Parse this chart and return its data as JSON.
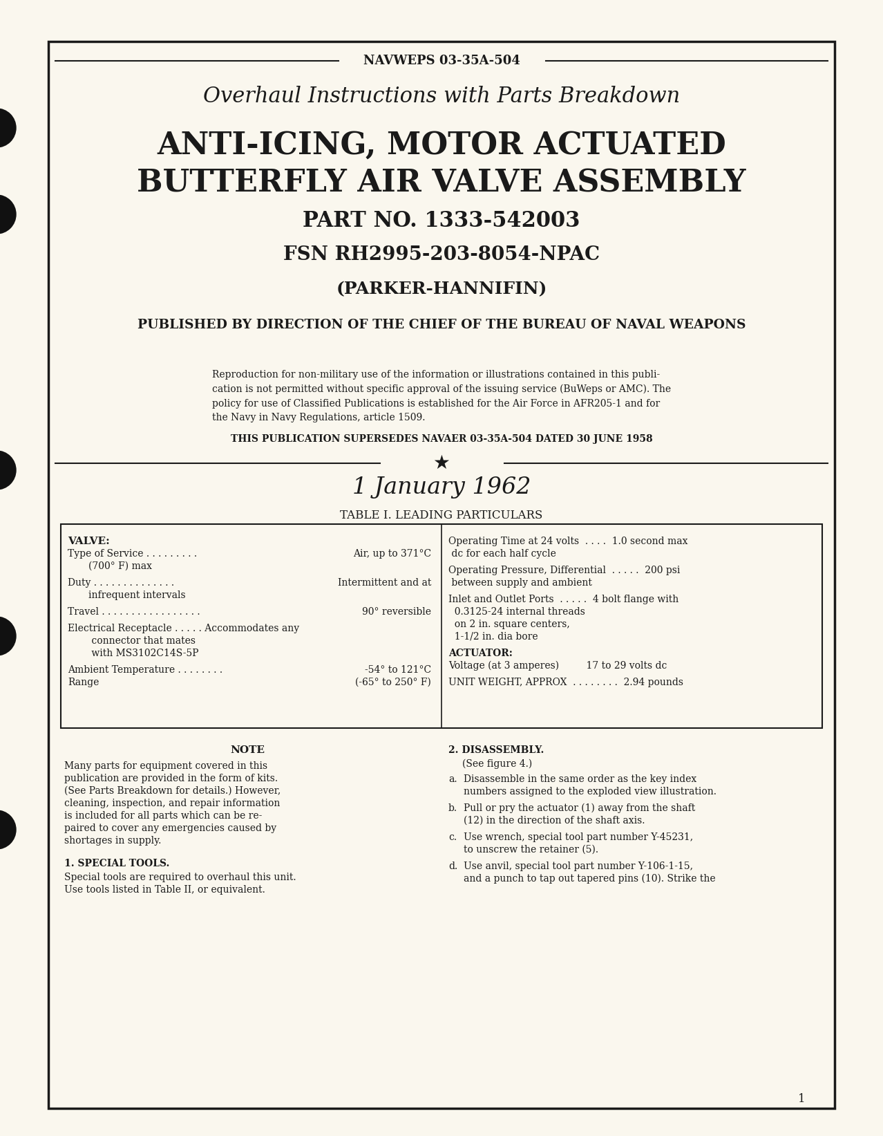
{
  "bg_color": "#f5f0e0",
  "page_bg": "#faf7ee",
  "text_color": "#1a1a1a",
  "border_color": "#1a1a1a",
  "header_doc_num": "NAVWEPS 03-35A-504",
  "title_line1": "Overhaul Instructions with Parts Breakdown",
  "title_line2": "ANTI-ICING, MOTOR ACTUATED",
  "title_line3": "BUTTERFLY AIR VALVE ASSEMBLY",
  "title_line4": "PART NO. 1333-542003",
  "title_line5": "FSN RH2995-203-8054-NPAC",
  "title_line6": "(PARKER-HANNIFIN)",
  "title_line7": "PUBLISHED BY DIRECTION OF THE CHIEF OF THE BUREAU OF NAVAL WEAPONS",
  "reproduction_text": "Reproduction for non-military use of the information or illustrations contained in this publication is not permitted without specific approval of the issuing service (BuWeps or AMC). The policy for use of Classified Publications is established for the Air Force in AFR205-1 and for the Navy in Navy Regulations, article 1509.",
  "supersedes_text": "THIS PUBLICATION SUPERSEDES NAVAER 03-35A-504 DATED 30 JUNE 1958",
  "date_text": "1 January 1962",
  "table_title": "TABLE I. LEADING PARTICULARS",
  "left_col": [
    [
      "VALVE:",
      ""
    ],
    [
      "Type of Service . . . . . . . . .",
      "Air, up to 371°C\n(700° F) max"
    ],
    [
      "",
      ""
    ],
    [
      "Duty . . . . . . . . . . . . . .",
      "Intermittent and at\ninfrequent intervals"
    ],
    [
      "",
      ""
    ],
    [
      "Travel . . . . . . . . . . . . . . . . .",
      "90° reversible"
    ],
    [
      "",
      ""
    ],
    [
      "Electrical Receptacle . . . . . Accommodates any\n connector that mates\n with MS3102C14S-5P",
      ""
    ],
    [
      "",
      ""
    ],
    [
      "Ambient Temperature . . . . . . . .",
      "-54° to 121°C"
    ],
    [
      "Range",
      "(-65° to 250° F)"
    ]
  ],
  "right_col": [
    [
      "Operating Time at 24 volts  . . . .  1.0 second max\n dc for each half cycle",
      ""
    ],
    [
      "",
      ""
    ],
    [
      "Operating Pressure, Differential  . . . . .  200 psi\n between supply and ambient",
      ""
    ],
    [
      "",
      ""
    ],
    [
      "Inlet and Outlet Ports  . . . . .  4 bolt flange with\n 0.3125-24 internal threads\n on 2 in. square centers,\n 1-1/2 in. dia bore",
      ""
    ],
    [
      "",
      ""
    ],
    [
      "ACTUATOR:",
      ""
    ],
    [
      "Voltage (at 3 amperes)         17 to 29 volts dc",
      ""
    ],
    [
      "",
      ""
    ],
    [
      "UNIT WEIGHT, APPROX  . . . . . . . .  2.94 pounds",
      ""
    ]
  ],
  "note_title": "NOTE",
  "note_text": "Many parts for equipment covered in this publication are provided in the form of kits. (See Parts Breakdown for details.) However, cleaning, inspection, and repair information is included for all parts which can be repaired to cover any emergencies caused by shortages in supply.",
  "section1_title": "1. SPECIAL TOOLS.",
  "section1_text": "Special tools are required to overhaul this unit. Use tools listed in Table II, or equivalent.",
  "section2_title": "2. DISASSEMBLY.",
  "section2_sub": "(See figure 4.)",
  "section2a": "a.  Disassemble in the same order as the key index numbers assigned to the exploded view illustration.",
  "section2b": "b.  Pull or pry the actuator (1) away from the shaft (12) in the direction of the shaft axis.",
  "section2c": "c.  Use wrench, special tool part number Y-45231, to unscrew the retainer (5).",
  "section2d": "d.  Use anvil, special tool part number Y-106-1-15, and a punch to tap out tapered pins (10). Strike the",
  "page_num": "1"
}
